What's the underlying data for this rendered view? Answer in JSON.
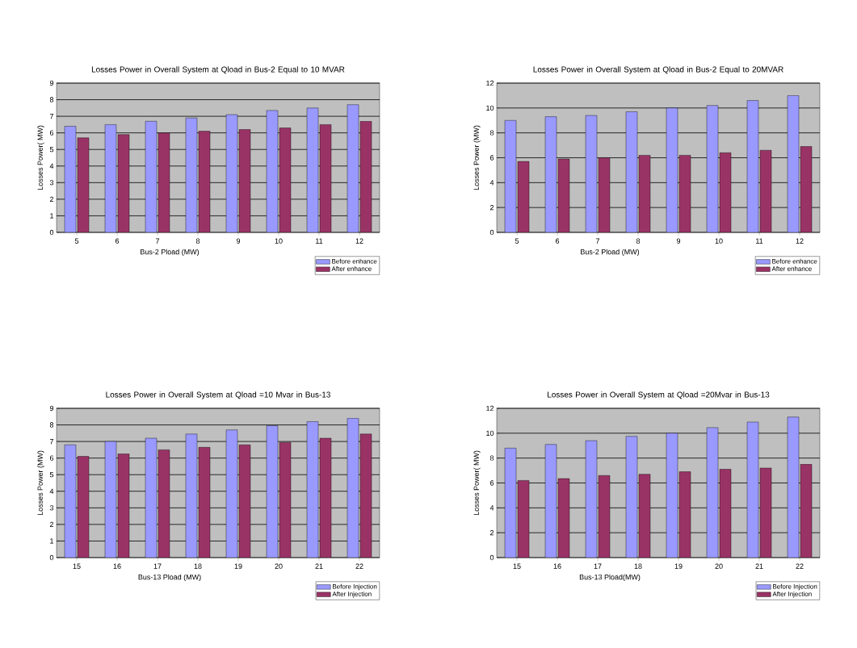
{
  "chart_data": [
    {
      "type": "bar",
      "title": "Losses Power in Overall System at Qload in Bus-2 Equal to 10 MVAR",
      "xlabel": "Bus-2 Pload (MW)",
      "ylabel": "Losses Power( MW)",
      "categories": [
        "5",
        "6",
        "7",
        "8",
        "9",
        "10",
        "11",
        "12"
      ],
      "series": [
        {
          "name": "Before enhance",
          "color": "#9999ff",
          "values": [
            6.4,
            6.5,
            6.7,
            6.9,
            7.1,
            7.35,
            7.5,
            7.7
          ]
        },
        {
          "name": "After enhance",
          "color": "#993366",
          "values": [
            5.7,
            5.9,
            6.0,
            6.1,
            6.2,
            6.3,
            6.5,
            6.7
          ]
        }
      ],
      "ylim": [
        0,
        9
      ],
      "yticks": [
        0,
        1,
        2,
        3,
        4,
        5,
        6,
        7,
        8,
        9
      ],
      "grid": "y",
      "legend": "bottom right"
    },
    {
      "type": "bar",
      "title": "Losses Power in Overall System at Qload in Bus-2 Equal to 20MVAR",
      "xlabel": "Bus-2 Pload (MW)",
      "ylabel": "Losses Power (MW)",
      "categories": [
        "5",
        "6",
        "7",
        "8",
        "9",
        "10",
        "11",
        "12"
      ],
      "series": [
        {
          "name": "Before enhance",
          "color": "#9999ff",
          "values": [
            9.0,
            9.3,
            9.4,
            9.7,
            10.0,
            10.2,
            10.6,
            11.0
          ]
        },
        {
          "name": "After enhance",
          "color": "#993366",
          "values": [
            5.7,
            5.9,
            6.0,
            6.2,
            6.2,
            6.4,
            6.6,
            6.9
          ]
        }
      ],
      "ylim": [
        0,
        12
      ],
      "yticks": [
        0,
        2,
        4,
        6,
        8,
        10,
        12
      ],
      "grid": "y",
      "legend": "bottom right"
    },
    {
      "type": "bar",
      "title": "Losses Power in Overall System at Qload =10 Mvar in Bus-13",
      "xlabel": "Bus-13 Pload (MW)",
      "ylabel": "Losses Power (MW)",
      "categories": [
        "15",
        "16",
        "17",
        "18",
        "19",
        "20",
        "21",
        "22"
      ],
      "series": [
        {
          "name": "Before Injection",
          "color": "#9999ff",
          "values": [
            6.8,
            7.0,
            7.2,
            7.45,
            7.7,
            7.95,
            8.2,
            8.4
          ]
        },
        {
          "name": "After Injection",
          "color": "#993366",
          "values": [
            6.1,
            6.25,
            6.5,
            6.65,
            6.8,
            6.95,
            7.2,
            7.45
          ]
        }
      ],
      "ylim": [
        0,
        9
      ],
      "yticks": [
        0,
        1,
        2,
        3,
        4,
        5,
        6,
        7,
        8,
        9
      ],
      "grid": "y",
      "legend": "bottom right"
    },
    {
      "type": "bar",
      "title": "Losses Power in Overall System at Qload =20Mvar in Bus-13",
      "xlabel": "Bus-13 Pload(MW)",
      "ylabel": "Losses Power( MW)",
      "categories": [
        "15",
        "16",
        "17",
        "18",
        "19",
        "20",
        "21",
        "22"
      ],
      "series": [
        {
          "name": "Before Injection",
          "color": "#9999ff",
          "values": [
            8.8,
            9.1,
            9.4,
            9.75,
            10.0,
            10.45,
            10.9,
            11.3
          ]
        },
        {
          "name": "After Injection",
          "color": "#993366",
          "values": [
            6.2,
            6.35,
            6.6,
            6.7,
            6.9,
            7.1,
            7.2,
            7.5
          ]
        }
      ],
      "ylim": [
        0,
        12
      ],
      "yticks": [
        0,
        2,
        4,
        6,
        8,
        10,
        12
      ],
      "grid": "y",
      "legend": "bottom right"
    }
  ]
}
